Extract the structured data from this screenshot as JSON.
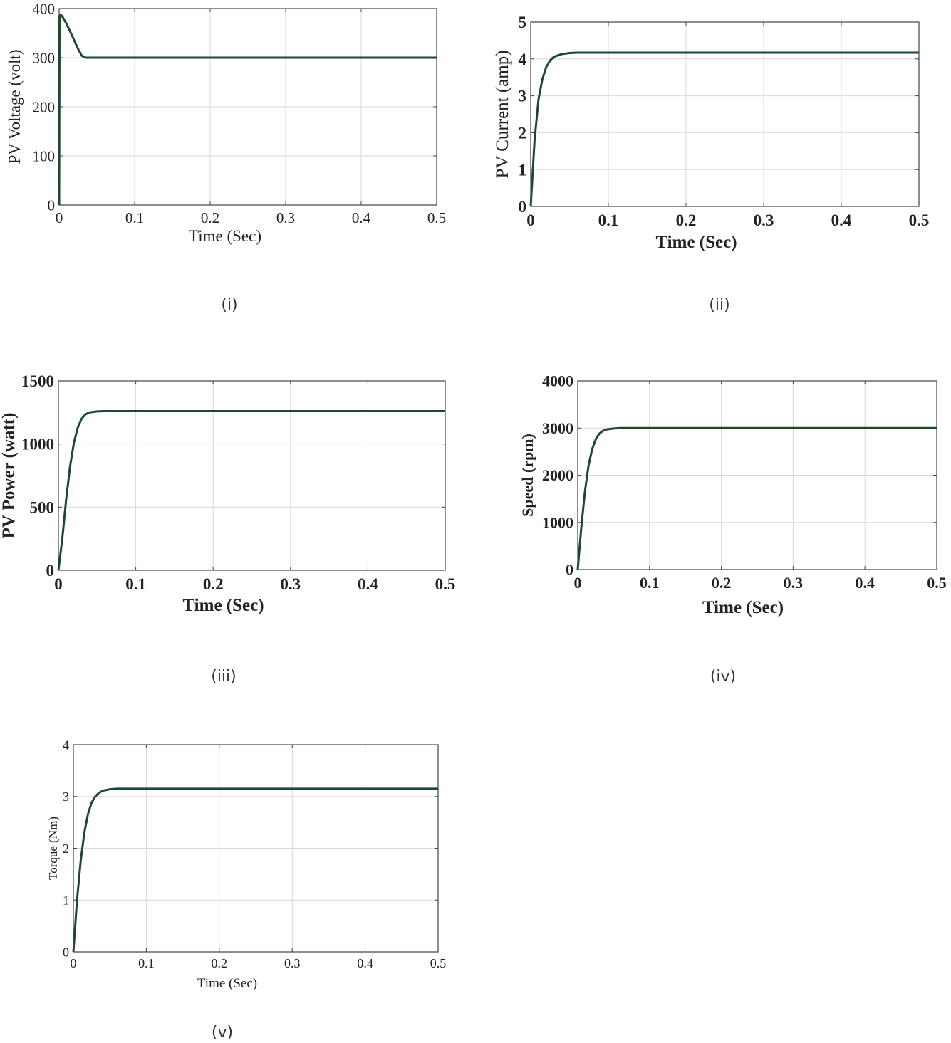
{
  "colors": {
    "line": "#1c4a2c",
    "grid": "#d9d9d9",
    "frame": "#444444"
  },
  "chart_data": [
    {
      "type": "line",
      "caption": "(i)",
      "title": "",
      "xlabel": "Time (Sec)",
      "ylabel": "PV Voltage (volt)",
      "xlim": [
        0,
        0.5
      ],
      "ylim": [
        0,
        400
      ],
      "xticks": [
        0,
        0.1,
        0.2,
        0.3,
        0.4,
        0.5
      ],
      "yticks": [
        0,
        100,
        200,
        300,
        400
      ],
      "grid": true,
      "series": [
        {
          "x": [
            0,
            0.0005,
            0.002,
            0.005,
            0.01,
            0.015,
            0.02,
            0.025,
            0.03,
            0.035,
            0.05,
            0.1,
            0.2,
            0.3,
            0.4,
            0.5
          ],
          "y": [
            0,
            385,
            388,
            382,
            368,
            352,
            335,
            318,
            304,
            300,
            300,
            300,
            300,
            300,
            300,
            300
          ]
        }
      ]
    },
    {
      "type": "line",
      "caption": "(ii)",
      "title": "",
      "xlabel": "Time (Sec)",
      "ylabel": "PV Current (amp)",
      "xlim": [
        0,
        0.5
      ],
      "ylim": [
        0,
        5
      ],
      "xticks": [
        0,
        0.1,
        0.2,
        0.3,
        0.4,
        0.5
      ],
      "yticks": [
        0,
        1,
        2,
        3,
        4,
        5
      ],
      "grid": true,
      "series": [
        {
          "x": [
            0,
            0.005,
            0.01,
            0.015,
            0.02,
            0.025,
            0.03,
            0.04,
            0.05,
            0.06,
            0.1,
            0.2,
            0.3,
            0.4,
            0.5
          ],
          "y": [
            0,
            1.8,
            2.9,
            3.45,
            3.78,
            3.96,
            4.06,
            4.13,
            4.16,
            4.17,
            4.17,
            4.17,
            4.17,
            4.17,
            4.17
          ]
        }
      ]
    },
    {
      "type": "line",
      "caption": "(iii)",
      "title": "",
      "xlabel": "Time (Sec)",
      "ylabel": "PV Power (watt)",
      "xlim": [
        0,
        0.5
      ],
      "ylim": [
        0,
        1500
      ],
      "xticks": [
        0,
        0.1,
        0.2,
        0.3,
        0.4,
        0.5
      ],
      "yticks": [
        0,
        500,
        1000,
        1500
      ],
      "grid": true,
      "series": [
        {
          "x": [
            0,
            0.005,
            0.01,
            0.015,
            0.02,
            0.025,
            0.03,
            0.035,
            0.04,
            0.05,
            0.06,
            0.1,
            0.2,
            0.3,
            0.4,
            0.5
          ],
          "y": [
            0,
            250,
            560,
            820,
            1010,
            1130,
            1200,
            1235,
            1250,
            1258,
            1260,
            1260,
            1260,
            1260,
            1260,
            1260
          ]
        }
      ]
    },
    {
      "type": "line",
      "caption": "(iv)",
      "title": "",
      "xlabel": "Time (Sec)",
      "ylabel": "Speed (rpm)",
      "xlim": [
        0,
        0.5
      ],
      "ylim": [
        0,
        4000
      ],
      "xticks": [
        0,
        0.1,
        0.2,
        0.3,
        0.4,
        0.5
      ],
      "yticks": [
        0,
        1000,
        2000,
        3000,
        4000
      ],
      "grid": true,
      "series": [
        {
          "x": [
            0,
            0.005,
            0.01,
            0.015,
            0.02,
            0.025,
            0.03,
            0.035,
            0.04,
            0.05,
            0.06,
            0.1,
            0.2,
            0.3,
            0.4,
            0.5
          ],
          "y": [
            0,
            900,
            1650,
            2200,
            2550,
            2760,
            2880,
            2940,
            2970,
            2990,
            3000,
            3000,
            3000,
            3000,
            3000,
            3000
          ]
        }
      ]
    },
    {
      "type": "line",
      "caption": "(v)",
      "title": "",
      "xlabel": "Time (Sec)",
      "ylabel": "Torque (Nm)",
      "xlim": [
        0,
        0.5
      ],
      "ylim": [
        0,
        4
      ],
      "xticks": [
        0,
        0.1,
        0.2,
        0.3,
        0.4,
        0.5
      ],
      "yticks": [
        0,
        1,
        2,
        3,
        4
      ],
      "grid": true,
      "series": [
        {
          "x": [
            0,
            0.005,
            0.01,
            0.015,
            0.02,
            0.025,
            0.03,
            0.035,
            0.04,
            0.05,
            0.06,
            0.1,
            0.2,
            0.3,
            0.4,
            0.5
          ],
          "y": [
            0,
            1.0,
            1.75,
            2.3,
            2.66,
            2.88,
            3.0,
            3.07,
            3.11,
            3.14,
            3.15,
            3.15,
            3.15,
            3.15,
            3.15,
            3.15
          ]
        }
      ]
    }
  ]
}
